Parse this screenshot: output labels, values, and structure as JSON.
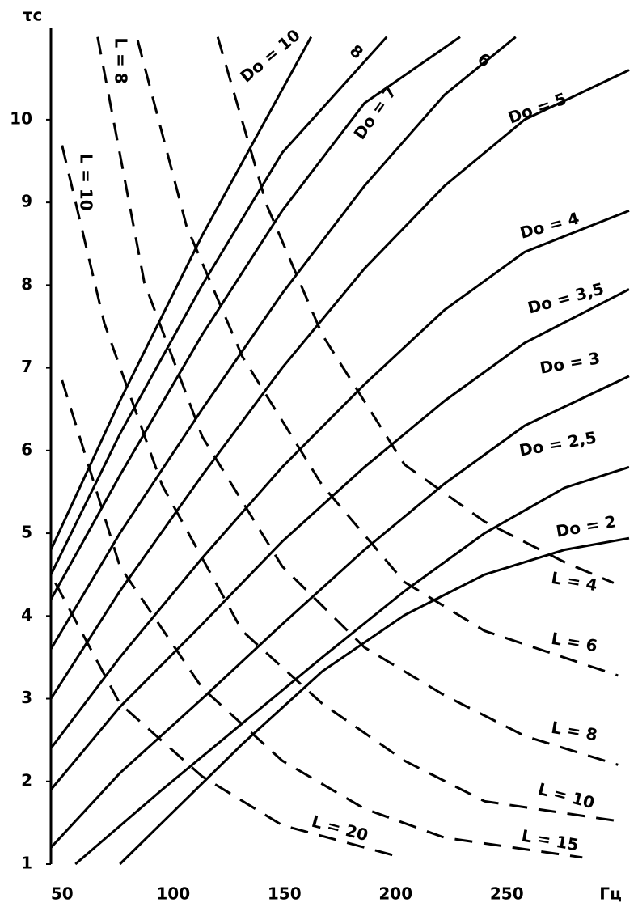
{
  "chart_data": {
    "type": "line",
    "y_label": "τc",
    "x_label": "Гц",
    "xlim": [
      45,
      305
    ],
    "ylim": [
      1,
      11.3
    ],
    "xticks": [
      50,
      100,
      150,
      200,
      250
    ],
    "yticks": [
      1,
      2,
      3,
      4,
      5,
      6,
      7,
      8,
      9,
      10
    ],
    "series": [
      {
        "name": "Do = 2",
        "color": "#000000",
        "style": "solid",
        "x": [
          76,
          131,
          167,
          204,
          240,
          276,
          305
        ],
        "values": [
          1,
          2.45,
          3.33,
          4.01,
          4.5,
          4.8,
          4.94
        ]
      },
      {
        "name": "Do = 2,5",
        "color": "#000000",
        "style": "solid",
        "x": [
          56,
          95,
          131,
          167,
          204,
          240,
          276,
          305
        ],
        "values": [
          1,
          1.9,
          2.7,
          3.5,
          4.3,
          5.0,
          5.55,
          5.8
        ]
      },
      {
        "name": "Do = 3",
        "color": "#000000",
        "style": "solid",
        "x": [
          45,
          76,
          113,
          149,
          186,
          222,
          258,
          305
        ],
        "values": [
          1.2,
          2.1,
          3.0,
          3.9,
          4.8,
          5.6,
          6.3,
          6.9
        ]
      },
      {
        "name": "Do = 3,5",
        "color": "#000000",
        "style": "solid",
        "x": [
          45,
          76,
          113,
          149,
          186,
          222,
          258,
          305
        ],
        "values": [
          1.9,
          2.9,
          3.9,
          4.9,
          5.8,
          6.6,
          7.3,
          7.95
        ]
      },
      {
        "name": "Do = 4",
        "color": "#000000",
        "style": "solid",
        "x": [
          45,
          76,
          113,
          149,
          186,
          222,
          258,
          305
        ],
        "values": [
          2.4,
          3.5,
          4.7,
          5.8,
          6.8,
          7.7,
          8.4,
          8.9
        ]
      },
      {
        "name": "Do = 5",
        "color": "#000000",
        "style": "solid",
        "x": [
          45,
          76,
          113,
          149,
          186,
          222,
          258,
          305
        ],
        "values": [
          3.0,
          4.3,
          5.7,
          7.0,
          8.2,
          9.2,
          10.0,
          10.6
        ]
      },
      {
        "name": "6",
        "color": "#000000",
        "style": "solid",
        "x": [
          45,
          76,
          113,
          149,
          186,
          222,
          254
        ],
        "values": [
          3.6,
          5.0,
          6.5,
          7.9,
          9.2,
          10.3,
          11.0
        ]
      },
      {
        "name": "Do = 7",
        "color": "#000000",
        "style": "solid",
        "x": [
          45,
          76,
          113,
          149,
          186,
          229
        ],
        "values": [
          4.2,
          5.7,
          7.4,
          8.9,
          10.2,
          11.0
        ]
      },
      {
        "name": "8",
        "color": "#000000",
        "style": "solid",
        "x": [
          45,
          76,
          113,
          149,
          196
        ],
        "values": [
          4.5,
          6.2,
          8.0,
          9.6,
          11.0
        ]
      },
      {
        "name": "Do = 10",
        "color": "#000000",
        "style": "solid",
        "x": [
          45,
          76,
          113,
          162
        ],
        "values": [
          4.8,
          6.6,
          8.6,
          11.0
        ]
      },
      {
        "name": "L = 4",
        "color": "#000000",
        "style": "dashed",
        "x": [
          120,
          142,
          167,
          204,
          240,
          276,
          298
        ],
        "values": [
          11.0,
          8.97,
          7.4,
          5.83,
          5.14,
          4.65,
          4.4
        ]
      },
      {
        "name": "L = 6",
        "color": "#000000",
        "style": "dashed",
        "x": [
          84,
          106,
          131,
          167,
          204,
          240,
          300
        ],
        "values": [
          10.96,
          8.71,
          7.14,
          5.58,
          4.41,
          3.82,
          3.28
        ]
      },
      {
        "name": "L = 8",
        "color": "#000000",
        "style": "dashed",
        "x": [
          66,
          87,
          113,
          149,
          186,
          222,
          258,
          300
        ],
        "values": [
          11.0,
          8.03,
          6.17,
          4.6,
          3.62,
          3.04,
          2.55,
          2.2
        ]
      },
      {
        "name": "L = 10",
        "color": "#000000",
        "style": "dashed",
        "x": [
          50,
          69,
          95,
          131,
          167,
          204,
          240,
          300
        ],
        "values": [
          9.69,
          7.54,
          5.58,
          3.82,
          2.94,
          2.25,
          1.76,
          1.52
        ]
      },
      {
        "name": "L = 15",
        "color": "#000000",
        "style": "dashed",
        "x": [
          50,
          76,
          113,
          149,
          186,
          222,
          284
        ],
        "values": [
          6.85,
          4.6,
          3.13,
          2.25,
          1.67,
          1.32,
          1.08
        ]
      },
      {
        "name": "L = 20",
        "color": "#000000",
        "style": "dashed",
        "x": [
          47,
          76,
          113,
          149,
          200
        ],
        "values": [
          4.4,
          2.94,
          2.06,
          1.47,
          1.1
        ]
      }
    ]
  }
}
